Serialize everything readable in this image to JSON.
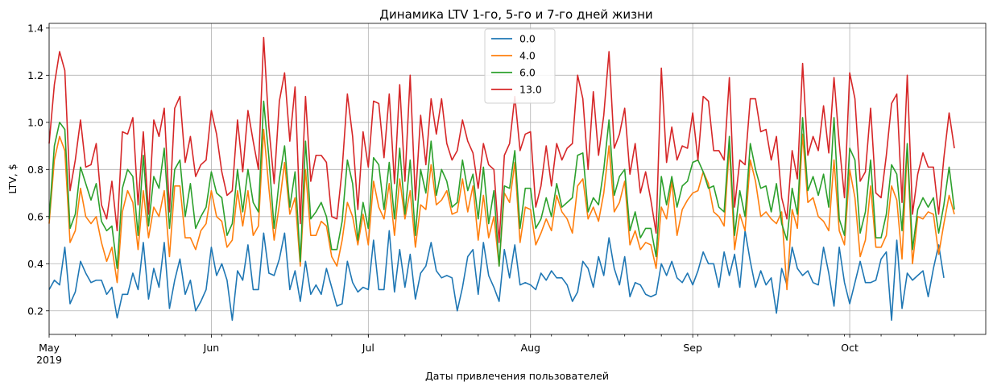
{
  "chart_data": {
    "type": "line",
    "title": "Динамика LTV 1-го, 5-го и 7-го дней жизни",
    "xlabel": "Даты привлечения пользователей",
    "ylabel": "LTV, $",
    "x_start": "2019-05-01",
    "x_end": "2019-10-27",
    "xlim": [
      "2019-05-01",
      "2019-10-27"
    ],
    "ylim": [
      0.1,
      1.42
    ],
    "yticks": [
      0.2,
      0.4,
      0.6,
      0.8,
      1.0,
      1.2,
      1.4
    ],
    "ytick_labels": [
      "0.2",
      "0.4",
      "0.6",
      "0.8",
      "1.0",
      "1.2",
      "1.4"
    ],
    "xticks": [
      {
        "date": "2019-05-01",
        "label": "May",
        "sublabel": "2019"
      },
      {
        "date": "2019-06-01",
        "label": "Jun",
        "sublabel": ""
      },
      {
        "date": "2019-07-01",
        "label": "Jul",
        "sublabel": ""
      },
      {
        "date": "2019-08-01",
        "label": "Aug",
        "sublabel": ""
      },
      {
        "date": "2019-09-01",
        "label": "Sep",
        "sublabel": ""
      },
      {
        "date": "2019-10-01",
        "label": "Oct",
        "sublabel": ""
      }
    ],
    "grid": true,
    "legend_position": "top-center",
    "series": [
      {
        "name": "0.0",
        "color": "#1f77b4",
        "values": [
          0.29,
          0.33,
          0.31,
          0.47,
          0.23,
          0.28,
          0.41,
          0.36,
          0.32,
          0.33,
          0.33,
          0.27,
          0.3,
          0.17,
          0.27,
          0.27,
          0.36,
          0.29,
          0.49,
          0.25,
          0.38,
          0.3,
          0.49,
          0.21,
          0.33,
          0.42,
          0.27,
          0.33,
          0.2,
          0.24,
          0.29,
          0.47,
          0.35,
          0.4,
          0.33,
          0.16,
          0.37,
          0.33,
          0.48,
          0.29,
          0.29,
          0.53,
          0.36,
          0.35,
          0.42,
          0.53,
          0.29,
          0.37,
          0.24,
          0.41,
          0.27,
          0.31,
          0.27,
          0.38,
          0.3,
          0.22,
          0.23,
          0.41,
          0.32,
          0.28,
          0.3,
          0.29,
          0.5,
          0.29,
          0.29,
          0.54,
          0.28,
          0.46,
          0.3,
          0.44,
          0.25,
          0.36,
          0.39,
          0.49,
          0.37,
          0.34,
          0.35,
          0.34,
          0.2,
          0.3,
          0.43,
          0.46,
          0.27,
          0.49,
          0.35,
          0.3,
          0.24,
          0.46,
          0.34,
          0.48,
          0.31,
          0.32,
          0.31,
          0.29,
          0.36,
          0.33,
          0.37,
          0.34,
          0.34,
          0.31,
          0.24,
          0.28,
          0.41,
          0.38,
          0.3,
          0.43,
          0.35,
          0.51,
          0.38,
          0.31,
          0.43,
          0.26,
          0.32,
          0.31,
          0.27,
          0.26,
          0.27,
          0.4,
          0.35,
          0.41,
          0.34,
          0.32,
          0.36,
          0.31,
          0.37,
          0.45,
          0.4,
          0.4,
          0.3,
          0.45,
          0.35,
          0.44,
          0.3,
          0.54,
          0.41,
          0.3,
          0.37,
          0.31,
          0.34,
          0.19,
          0.38,
          0.31,
          0.47,
          0.38,
          0.35,
          0.37,
          0.32,
          0.31,
          0.47,
          0.36,
          0.22,
          0.47,
          0.32,
          0.23,
          0.32,
          0.41,
          0.32,
          0.32,
          0.33,
          0.42,
          0.45,
          0.16,
          0.5,
          0.21,
          0.36,
          0.33,
          0.35,
          0.37,
          0.26,
          0.38,
          0.48,
          0.34
        ]
      },
      {
        "name": "4.0",
        "color": "#ff7f0e",
        "values": [
          0.57,
          0.84,
          0.94,
          0.88,
          0.49,
          0.54,
          0.72,
          0.6,
          0.57,
          0.6,
          0.49,
          0.41,
          0.47,
          0.32,
          0.62,
          0.71,
          0.66,
          0.46,
          0.71,
          0.51,
          0.64,
          0.6,
          0.71,
          0.43,
          0.73,
          0.73,
          0.51,
          0.51,
          0.46,
          0.54,
          0.57,
          0.71,
          0.6,
          0.58,
          0.47,
          0.5,
          0.71,
          0.56,
          0.71,
          0.52,
          0.56,
          0.97,
          0.72,
          0.5,
          0.65,
          0.83,
          0.61,
          0.68,
          0.39,
          0.8,
          0.52,
          0.52,
          0.58,
          0.56,
          0.43,
          0.39,
          0.5,
          0.66,
          0.6,
          0.48,
          0.61,
          0.48,
          0.75,
          0.64,
          0.59,
          0.74,
          0.52,
          0.76,
          0.59,
          0.71,
          0.47,
          0.65,
          0.63,
          0.82,
          0.65,
          0.67,
          0.71,
          0.61,
          0.62,
          0.76,
          0.62,
          0.73,
          0.5,
          0.69,
          0.51,
          0.6,
          0.39,
          0.7,
          0.66,
          0.83,
          0.49,
          0.64,
          0.63,
          0.48,
          0.53,
          0.59,
          0.54,
          0.69,
          0.62,
          0.59,
          0.53,
          0.73,
          0.76,
          0.59,
          0.64,
          0.58,
          0.7,
          0.9,
          0.62,
          0.66,
          0.75,
          0.48,
          0.54,
          0.46,
          0.49,
          0.48,
          0.38,
          0.64,
          0.59,
          0.75,
          0.52,
          0.63,
          0.67,
          0.7,
          0.71,
          0.79,
          0.74,
          0.62,
          0.6,
          0.56,
          0.9,
          0.46,
          0.61,
          0.54,
          0.84,
          0.75,
          0.6,
          0.62,
          0.59,
          0.57,
          0.62,
          0.29,
          0.63,
          0.55,
          0.95,
          0.66,
          0.68,
          0.6,
          0.58,
          0.54,
          0.84,
          0.54,
          0.48,
          0.8,
          0.68,
          0.43,
          0.5,
          0.73,
          0.47,
          0.47,
          0.52,
          0.73,
          0.67,
          0.42,
          0.89,
          0.4,
          0.6,
          0.59,
          0.62,
          0.61,
          0.44,
          0.57,
          0.69,
          0.61
        ]
      },
      {
        "name": "6.0",
        "color": "#2ca02c",
        "values": [
          0.59,
          0.9,
          1.0,
          0.97,
          0.55,
          0.61,
          0.81,
          0.74,
          0.67,
          0.74,
          0.58,
          0.54,
          0.56,
          0.38,
          0.72,
          0.8,
          0.77,
          0.52,
          0.86,
          0.56,
          0.77,
          0.72,
          0.89,
          0.55,
          0.8,
          0.84,
          0.6,
          0.74,
          0.55,
          0.6,
          0.64,
          0.79,
          0.7,
          0.68,
          0.52,
          0.57,
          0.8,
          0.62,
          0.8,
          0.66,
          0.62,
          1.09,
          0.85,
          0.55,
          0.76,
          0.9,
          0.64,
          0.79,
          0.41,
          0.92,
          0.59,
          0.62,
          0.66,
          0.6,
          0.46,
          0.46,
          0.58,
          0.84,
          0.74,
          0.5,
          0.66,
          0.55,
          0.85,
          0.82,
          0.63,
          0.83,
          0.59,
          0.89,
          0.61,
          0.84,
          0.52,
          0.8,
          0.7,
          0.92,
          0.69,
          0.8,
          0.75,
          0.64,
          0.66,
          0.84,
          0.71,
          0.78,
          0.59,
          0.81,
          0.57,
          0.71,
          0.39,
          0.73,
          0.72,
          0.88,
          0.55,
          0.72,
          0.72,
          0.55,
          0.59,
          0.68,
          0.6,
          0.74,
          0.64,
          0.66,
          0.68,
          0.86,
          0.87,
          0.62,
          0.68,
          0.65,
          0.8,
          1.01,
          0.69,
          0.77,
          0.8,
          0.54,
          0.62,
          0.51,
          0.55,
          0.55,
          0.43,
          0.77,
          0.65,
          0.77,
          0.64,
          0.73,
          0.75,
          0.83,
          0.84,
          0.79,
          0.72,
          0.73,
          0.64,
          0.62,
          0.94,
          0.52,
          0.71,
          0.6,
          0.91,
          0.8,
          0.72,
          0.73,
          0.62,
          0.74,
          0.57,
          0.5,
          0.72,
          0.61,
          1.02,
          0.71,
          0.77,
          0.69,
          0.78,
          0.64,
          1.02,
          0.59,
          0.52,
          0.89,
          0.84,
          0.53,
          0.62,
          0.84,
          0.51,
          0.51,
          0.61,
          0.82,
          0.78,
          0.54,
          0.91,
          0.46,
          0.63,
          0.68,
          0.64,
          0.68,
          0.53,
          0.65,
          0.81,
          0.63
        ]
      },
      {
        "name": "13.0",
        "color": "#d62728",
        "values": [
          0.91,
          1.16,
          1.3,
          1.22,
          0.71,
          0.84,
          1.01,
          0.81,
          0.82,
          0.91,
          0.65,
          0.59,
          0.75,
          0.54,
          0.96,
          0.95,
          1.02,
          0.65,
          0.96,
          0.61,
          1.01,
          0.94,
          1.06,
          0.62,
          1.06,
          1.11,
          0.83,
          0.94,
          0.77,
          0.82,
          0.84,
          1.05,
          0.95,
          0.79,
          0.69,
          0.71,
          1.01,
          0.79,
          1.05,
          0.92,
          0.8,
          1.36,
          0.98,
          0.74,
          1.09,
          1.21,
          0.92,
          1.15,
          0.57,
          1.11,
          0.75,
          0.86,
          0.86,
          0.83,
          0.6,
          0.59,
          0.8,
          1.12,
          0.94,
          0.63,
          0.96,
          0.81,
          1.09,
          1.08,
          0.85,
          1.12,
          0.74,
          1.16,
          0.75,
          1.2,
          0.67,
          1.03,
          0.82,
          1.1,
          0.95,
          1.1,
          0.91,
          0.84,
          0.88,
          1.01,
          0.92,
          0.87,
          0.72,
          0.91,
          0.82,
          0.8,
          0.49,
          0.86,
          0.91,
          1.11,
          0.88,
          0.95,
          0.96,
          0.64,
          0.73,
          0.9,
          0.73,
          0.91,
          0.84,
          0.89,
          0.91,
          1.2,
          1.1,
          0.8,
          1.13,
          0.86,
          1.03,
          1.3,
          0.89,
          0.95,
          1.06,
          0.78,
          0.91,
          0.7,
          0.79,
          0.67,
          0.53,
          1.23,
          0.83,
          0.98,
          0.84,
          0.9,
          0.89,
          1.04,
          0.84,
          1.11,
          1.09,
          0.88,
          0.88,
          0.84,
          1.19,
          0.64,
          0.84,
          0.82,
          1.1,
          1.1,
          0.96,
          0.97,
          0.84,
          0.94,
          0.68,
          0.59,
          0.88,
          0.76,
          1.25,
          0.86,
          0.94,
          0.88,
          1.07,
          0.87,
          1.19,
          0.91,
          0.68,
          1.21,
          1.1,
          0.75,
          0.79,
          1.06,
          0.7,
          0.68,
          0.86,
          1.08,
          1.12,
          0.66,
          1.2,
          0.61,
          0.78,
          0.87,
          0.81,
          0.81,
          0.61,
          0.85,
          1.04,
          0.89
        ]
      }
    ]
  }
}
